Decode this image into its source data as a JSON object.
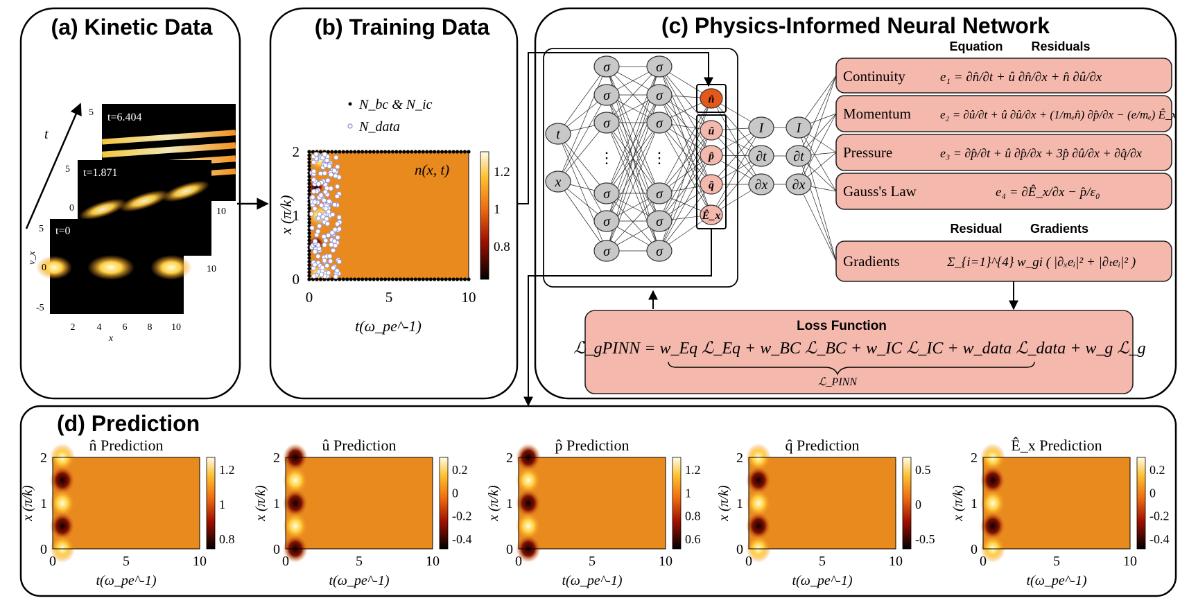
{
  "panels": {
    "a": {
      "title": "(a) Kinetic Data",
      "axis_t": "t",
      "frames": [
        {
          "label": "t=6.404",
          "tick_top": "5"
        },
        {
          "label": "t=1.871",
          "tick_top": "5",
          "tick_mid": "0"
        },
        {
          "label": "t=0",
          "tick_top": "5",
          "tick_mid": "0",
          "tick_bot": "-5"
        }
      ],
      "vx_label": "v_x",
      "x_label": "x",
      "x_ticks": [
        "2",
        "4",
        "6",
        "8",
        "10"
      ],
      "right_tick": "10"
    },
    "b": {
      "title": "(b) Training Data",
      "legend_bc": "N_bc & N_ic",
      "legend_data": "N_data",
      "field_label": "n(x, t)",
      "y_label": "x (π/k)",
      "x_label": "t(ω_pe^-1)",
      "x_ticks": [
        "0",
        "5",
        "10"
      ],
      "y_ticks": [
        "0",
        "1",
        "2"
      ],
      "cbar_ticks": [
        "1.2",
        "1",
        "0.8"
      ]
    },
    "c": {
      "title": "(c) Physics-Informed Neural Network",
      "head_equation": "Equation",
      "head_residuals": "Residuals",
      "head_residual": "Residual",
      "head_gradients": "Gradients",
      "inputs": [
        "t",
        "x"
      ],
      "sigma": "σ",
      "dots": "⋮",
      "outputs": [
        "n̂",
        "û",
        "p̂",
        "q̂",
        "Ê_x"
      ],
      "ops1": [
        "I",
        "∂t",
        "∂x"
      ],
      "ops2": [
        "I",
        "∂t",
        "∂x"
      ],
      "equations": [
        {
          "name": "Continuity",
          "formula": "e₁ = ∂n̂/∂t + û ∂n̂/∂x + n̂ ∂û/∂x"
        },
        {
          "name": "Momentum",
          "formula": "e₂ = ∂û/∂t + û ∂û/∂x + (1/mₑn̂) ∂p̂/∂x − (e/mₑ) Ê_x"
        },
        {
          "name": "Pressure",
          "formula": "e₃ = ∂p̂/∂t + û ∂p̂/∂x + 3p̂ ∂û/∂x + ∂q̂/∂x"
        },
        {
          "name": "Gauss's Law",
          "formula": "e₄ = ∂Ê_x/∂x − p̂/ε₀"
        }
      ],
      "gradients": {
        "name": "Gradients",
        "formula": "Σ_{i=1}^{4} w_gi ( |∂ₓeᵢ|² + |∂ₜeᵢ|² )"
      },
      "loss": {
        "title": "Loss Function",
        "formula": "ℒ_gPINN = w_Eq ℒ_Eq + w_BC ℒ_BC + w_IC ℒ_IC + w_data ℒ_data + w_g ℒ_g",
        "brace_label": "ℒ_PINN"
      }
    },
    "d": {
      "title": "(d) Prediction",
      "y_label": "x (π/k)",
      "x_label": "t(ω_pe^-1)",
      "x_ticks": [
        "0",
        "5",
        "10"
      ],
      "y_ticks": [
        "0",
        "1",
        "2"
      ],
      "plots": [
        {
          "title": "n̂  Prediction",
          "cbar": [
            "1.2",
            "1",
            "0.8"
          ]
        },
        {
          "title": "û  Prediction",
          "cbar": [
            "0.2",
            "0",
            "-0.2",
            "-0.4"
          ]
        },
        {
          "title": "p̂  Prediction",
          "cbar": [
            "1.2",
            "1",
            "0.8",
            "0.6"
          ]
        },
        {
          "title": "q̂  Prediction",
          "cbar": [
            "0.5",
            "0",
            "-0.5"
          ]
        },
        {
          "title": "Ê_x  Prediction",
          "cbar": [
            "0.2",
            "0",
            "-0.2",
            "-0.4"
          ]
        }
      ]
    }
  },
  "colors": {
    "box_fill": "#f4b8ad",
    "box_stroke": "#222222",
    "node_fill": "#c8c8c8",
    "out_node": "#e4581c",
    "heat_bg": "#e88a1c",
    "heat_hot": "#fff8b0",
    "heat_cold": "#200000"
  }
}
